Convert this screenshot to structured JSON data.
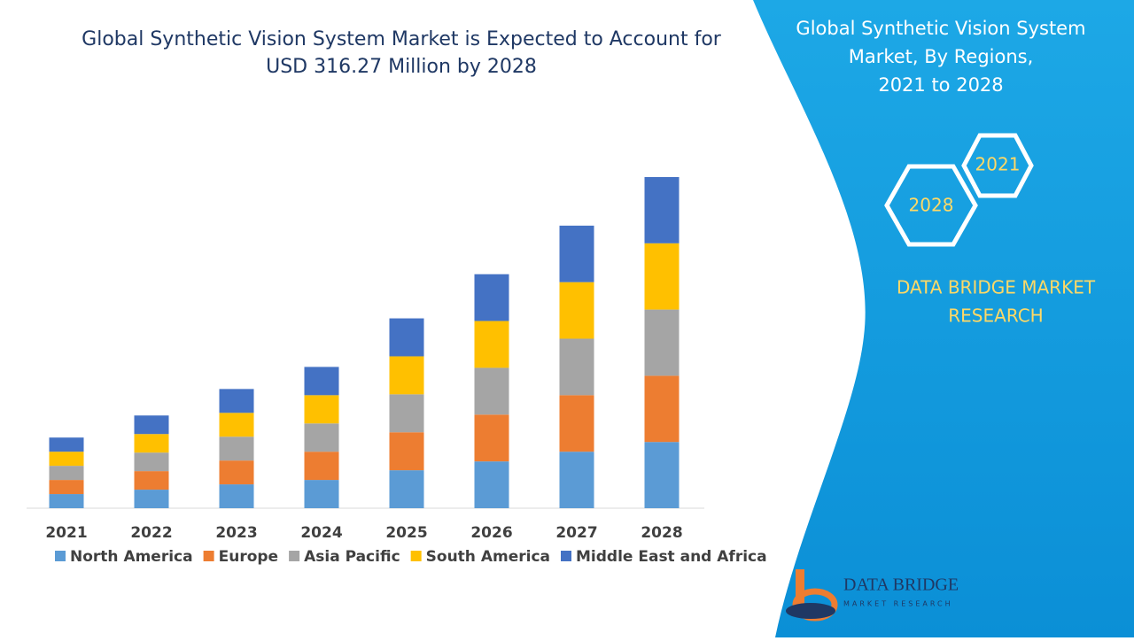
{
  "chart_data": {
    "type": "stacked-bar",
    "title": [
      "Global Synthetic Vision System Market is Expected to Account for",
      "USD 316.27 Million by 2028"
    ],
    "categories": [
      "2021",
      "2022",
      "2023",
      "2024",
      "2025",
      "2026",
      "2027",
      "2028"
    ],
    "series": [
      {
        "name": "North America",
        "color": "#5b9bd5",
        "values": [
          16,
          21,
          27,
          32,
          43,
          53,
          64,
          75
        ]
      },
      {
        "name": "Europe",
        "color": "#ed7d31",
        "values": [
          16,
          21,
          27,
          32,
          43,
          53,
          64,
          75
        ]
      },
      {
        "name": "Asia Pacific",
        "color": "#a5a5a5",
        "values": [
          16,
          21,
          27,
          32,
          43,
          53,
          64,
          75
        ]
      },
      {
        "name": "South America",
        "color": "#ffc000",
        "values": [
          16,
          21,
          27,
          32,
          43,
          53,
          64,
          75
        ]
      },
      {
        "name": "Middle East and Africa",
        "color": "#4472c4",
        "values": [
          16,
          21,
          27,
          32,
          43,
          53,
          64,
          75
        ]
      }
    ]
  },
  "panel": {
    "title": [
      "Global Synthetic Vision System",
      "Market, By Regions,",
      "2021 to 2028"
    ],
    "hex_years": [
      "2021",
      "2028"
    ],
    "brand": [
      "DATA BRIDGE MARKET",
      "RESEARCH"
    ],
    "logo": {
      "name": "DATA BRIDGE",
      "tagline": "MARKET RESEARCH"
    }
  }
}
